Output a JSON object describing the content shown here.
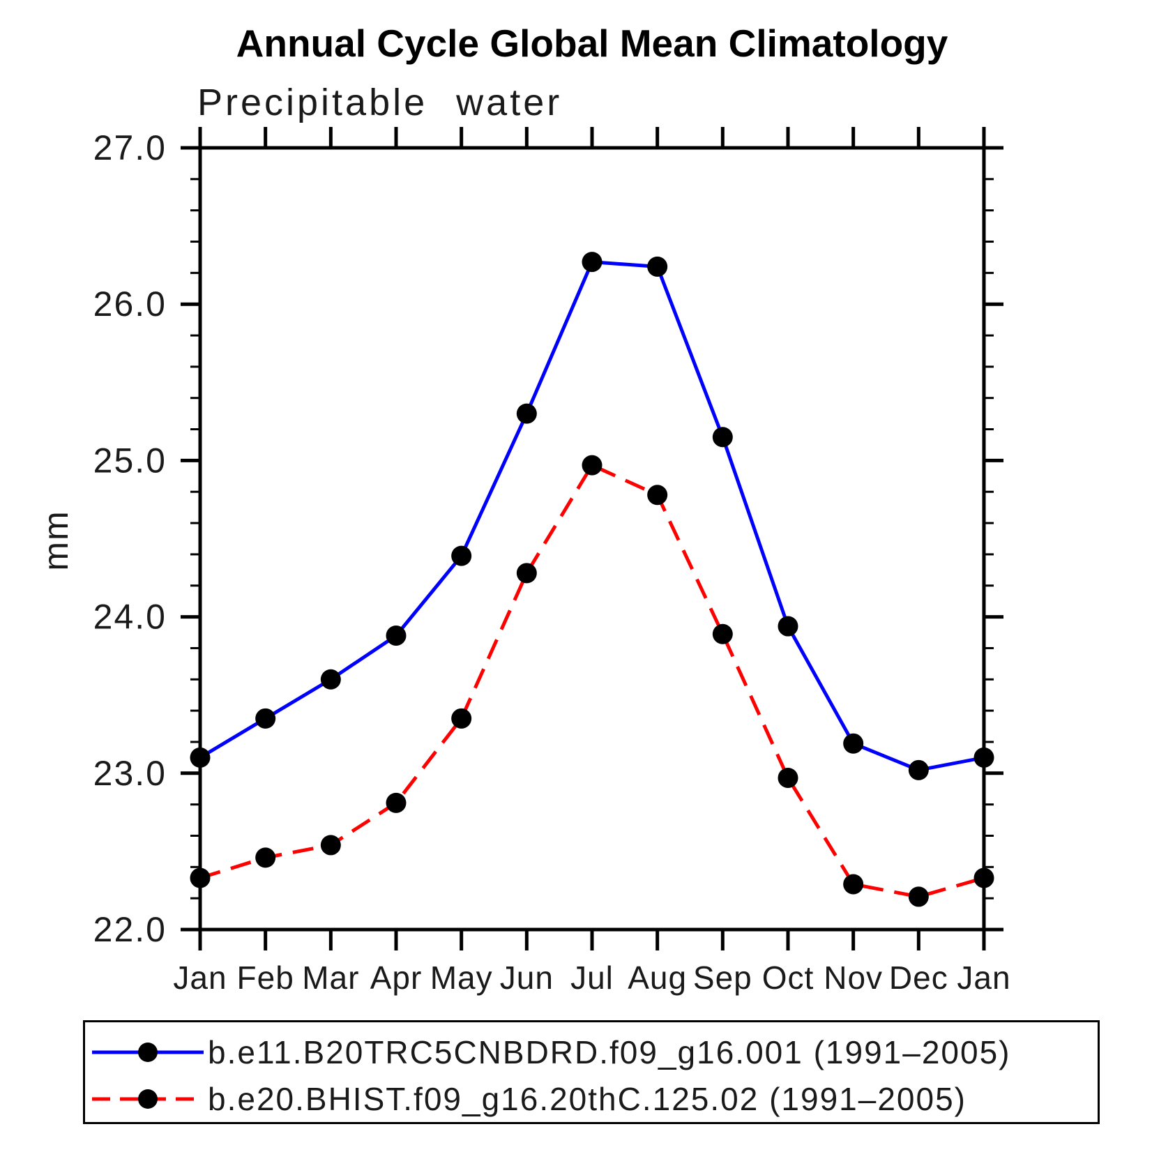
{
  "chart_data": {
    "type": "line",
    "title": "Annual Cycle Global Mean Climatology",
    "subtitle": "Precipitable water",
    "ylabel": "mm",
    "xlabel": "",
    "categories": [
      "Jan",
      "Feb",
      "Mar",
      "Apr",
      "May",
      "Jun",
      "Jul",
      "Aug",
      "Sep",
      "Oct",
      "Nov",
      "Dec",
      "Jan"
    ],
    "ylim": [
      22.0,
      27.0
    ],
    "y_major_step": 1.0,
    "y_minor_step": 0.2,
    "y_tick_labels": [
      "22.0",
      "23.0",
      "24.0",
      "25.0",
      "26.0",
      "27.0"
    ],
    "grid": false,
    "legend_position": "bottom",
    "series": [
      {
        "name": "b.e11.B20TRC5CNBDRD.f09_g16.001 (1991–2005)",
        "color": "#0000ff",
        "style": "solid",
        "marker": "circle",
        "marker_color": "#000000",
        "values": [
          23.1,
          23.35,
          23.6,
          23.88,
          24.39,
          25.3,
          26.27,
          26.24,
          25.15,
          23.94,
          23.19,
          23.02,
          23.1
        ]
      },
      {
        "name": "b.e20.BHIST.f09_g16.20thC.125.02 (1991–2005)",
        "color": "#ff0000",
        "style": "dashed",
        "marker": "circle",
        "marker_color": "#000000",
        "values": [
          22.33,
          22.46,
          22.54,
          22.81,
          23.35,
          24.28,
          24.97,
          24.78,
          23.89,
          22.97,
          22.29,
          22.21,
          22.33
        ]
      }
    ]
  },
  "colors": {
    "background": "#ffffff",
    "axis": "#000000",
    "text": "#1a1a1a"
  }
}
